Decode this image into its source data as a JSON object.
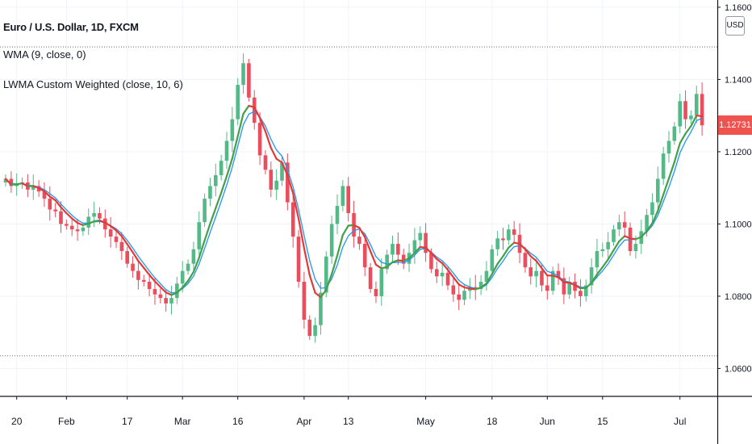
{
  "legend": {
    "title": "Euro / U.S. Dollar, 1D, FXCM",
    "indicator1": "WMA (9, close, 0)",
    "indicator2": "LWMA Custom Weighted (close, 10, 6)"
  },
  "currency_button": "USD",
  "last_price": "1.12731",
  "colors": {
    "up": "#53b987",
    "down": "#eb4d5c",
    "wma": "#2196f3",
    "lwma_up": "#43a047",
    "lwma_down": "#e53935",
    "grid": "#f0f3fa",
    "axis_text": "#131722",
    "price_tag": "#ef5350"
  },
  "chart_data": {
    "type": "candlestick",
    "symbol": "EURUSD",
    "timeframe": "1D",
    "y_ticks": [
      "1.06000",
      "1.08000",
      "1.10000",
      "1.12000",
      "1.14000",
      "1.16000"
    ],
    "y_tick_values": [
      1.06,
      1.08,
      1.1,
      1.12,
      1.14,
      1.16
    ],
    "ylim": [
      1.0525,
      1.162
    ],
    "x_ticks": [
      {
        "label": "20",
        "index": 2
      },
      {
        "label": "Feb",
        "index": 11
      },
      {
        "label": "17",
        "index": 22
      },
      {
        "label": "Mar",
        "index": 32
      },
      {
        "label": "16",
        "index": 42
      },
      {
        "label": "Apr",
        "index": 54
      },
      {
        "label": "13",
        "index": 62
      },
      {
        "label": "May",
        "index": 76
      },
      {
        "label": "18",
        "index": 88
      },
      {
        "label": "Jun",
        "index": 98
      },
      {
        "label": "15",
        "index": 108
      },
      {
        "label": "Jul",
        "index": 122
      }
    ],
    "x_count": 127,
    "hlines": [
      1.149,
      1.0635
    ],
    "last_price": 1.12731,
    "close": [
      1.1125,
      1.1105,
      1.111,
      1.1115,
      1.1095,
      1.1105,
      1.109,
      1.107,
      1.104,
      1.1035,
      1.1,
      1.0995,
      1.0985,
      1.098,
      1.099,
      1.102,
      1.103,
      1.1015,
      1.0985,
      1.0965,
      1.095,
      1.0925,
      1.089,
      1.087,
      1.0845,
      1.084,
      1.082,
      1.0805,
      1.0795,
      1.078,
      1.0795,
      1.0835,
      1.087,
      1.089,
      1.093,
      1.1005,
      1.107,
      1.1105,
      1.1135,
      1.1175,
      1.123,
      1.129,
      1.1385,
      1.1445,
      1.135,
      1.128,
      1.119,
      1.115,
      1.1095,
      1.112,
      1.117,
      1.106,
      1.0965,
      1.084,
      1.0735,
      1.069,
      1.072,
      1.081,
      1.091,
      1.1,
      1.105,
      1.1105,
      1.103,
      1.0965,
      1.0945,
      1.088,
      1.082,
      1.08,
      1.0875,
      1.0915,
      1.0945,
      1.0915,
      1.089,
      1.092,
      1.0955,
      1.0975,
      1.092,
      1.0875,
      1.0855,
      1.0865,
      1.083,
      1.0805,
      1.079,
      1.0815,
      1.0825,
      1.082,
      1.084,
      1.087,
      1.093,
      1.096,
      1.0955,
      1.0985,
      1.097,
      1.092,
      1.088,
      1.0855,
      1.087,
      1.083,
      1.0815,
      1.087,
      1.085,
      1.0805,
      1.084,
      1.0815,
      1.08,
      1.083,
      1.088,
      1.0925,
      1.093,
      1.095,
      1.0985,
      1.1005,
      1.099,
      1.0925,
      1.0945,
      1.098,
      1.1025,
      1.106,
      1.1125,
      1.1195,
      1.123,
      1.127,
      1.134,
      1.129,
      1.13,
      1.136,
      1.12731
    ]
  }
}
